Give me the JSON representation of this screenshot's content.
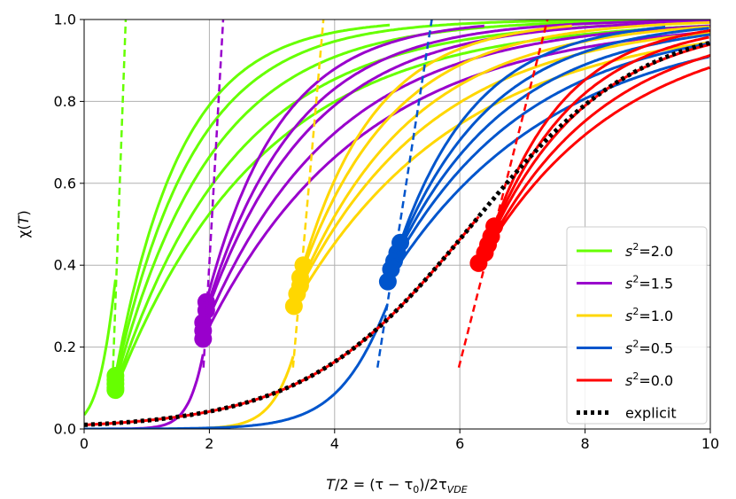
{
  "chart_data": {
    "type": "line",
    "title": "",
    "xlabel": "T/2 = (τ − τ₀)/2τ_VDE",
    "xlabel_parts": {
      "lead": "T",
      "mid": "/2 = (τ − τ",
      "sub0": "0",
      "tail": ")/2τ",
      "subvde": "VDE"
    },
    "ylabel": "χ(T)",
    "ylabel_parts": {
      "chi": "χ(",
      "t": "T",
      "close": ")"
    },
    "xlim": [
      0,
      10
    ],
    "ylim": [
      0,
      1.0
    ],
    "xticks": [
      "0",
      "2",
      "4",
      "6",
      "8",
      "10"
    ],
    "yticks": [
      "0.0",
      "0.2",
      "0.4",
      "0.6",
      "0.8",
      "1.0"
    ],
    "grid": true,
    "legend_position": "lower-right",
    "explicit": {
      "name": "explicit",
      "color": "#000000",
      "style": "dotted",
      "center": 6.2,
      "scale": 1.35,
      "x_end": 10
    },
    "families": [
      {
        "name": "s²=2.0",
        "label_base": "s",
        "label_sup": "2",
        "label_value": "=2.0",
        "color": "#66ff00",
        "base_center": 0.6,
        "base_scale": 0.18,
        "tangent": {
          "x0": 0.45,
          "y0": 0.1,
          "slope": 4.2
        },
        "curves": [
          {
            "x0": 0.5,
            "y0": 0.13,
            "k": 0.95,
            "x_end": 4.9
          },
          {
            "x0": 0.5,
            "y0": 0.12,
            "k": 0.8,
            "x_end": 10
          },
          {
            "x0": 0.5,
            "y0": 0.11,
            "k": 0.65,
            "x_end": 10
          },
          {
            "x0": 0.5,
            "y0": 0.1,
            "k": 0.52,
            "x_end": 10
          },
          {
            "x0": 0.5,
            "y0": 0.095,
            "k": 0.43,
            "x_end": 10
          }
        ]
      },
      {
        "name": "s²=1.5",
        "label_base": "s",
        "label_sup": "2",
        "label_value": "=1.5",
        "color": "#9900cc",
        "base_center": 2.2,
        "base_scale": 0.2,
        "tangent": {
          "x0": 1.95,
          "y0": 0.27,
          "slope": 2.7
        },
        "curves": [
          {
            "x0": 1.95,
            "y0": 0.31,
            "k": 0.85,
            "x_end": 6.4
          },
          {
            "x0": 1.95,
            "y0": 0.29,
            "k": 0.7,
            "x_end": 10
          },
          {
            "x0": 1.9,
            "y0": 0.26,
            "k": 0.6,
            "x_end": 10
          },
          {
            "x0": 1.9,
            "y0": 0.24,
            "k": 0.48,
            "x_end": 10
          },
          {
            "x0": 1.9,
            "y0": 0.22,
            "k": 0.4,
            "x_end": 10
          }
        ]
      },
      {
        "name": "s²=1.0",
        "label_base": "s",
        "label_sup": "2",
        "label_value": "=1.0",
        "color": "#ffd700",
        "base_center": 3.8,
        "base_scale": 0.3,
        "tangent": {
          "x0": 3.45,
          "y0": 0.35,
          "slope": 1.75
        },
        "curves": [
          {
            "x0": 3.5,
            "y0": 0.4,
            "k": 0.85,
            "x_end": 7.8
          },
          {
            "x0": 3.45,
            "y0": 0.37,
            "k": 0.68,
            "x_end": 10
          },
          {
            "x0": 3.45,
            "y0": 0.35,
            "k": 0.55,
            "x_end": 10
          },
          {
            "x0": 3.4,
            "y0": 0.33,
            "k": 0.46,
            "x_end": 10
          },
          {
            "x0": 3.35,
            "y0": 0.3,
            "k": 0.38,
            "x_end": 10
          }
        ]
      },
      {
        "name": "s²=0.5",
        "label_base": "s",
        "label_sup": "2",
        "label_value": "=0.5",
        "color": "#0055cc",
        "base_center": 5.3,
        "base_scale": 0.55,
        "tangent": {
          "x0": 4.95,
          "y0": 0.41,
          "slope": 0.98
        },
        "curves": [
          {
            "x0": 5.05,
            "y0": 0.455,
            "k": 0.8,
            "x_end": 9.3
          },
          {
            "x0": 5.0,
            "y0": 0.43,
            "k": 0.66,
            "x_end": 10
          },
          {
            "x0": 4.95,
            "y0": 0.41,
            "k": 0.55,
            "x_end": 10
          },
          {
            "x0": 4.9,
            "y0": 0.39,
            "k": 0.46,
            "x_end": 10
          },
          {
            "x0": 4.85,
            "y0": 0.36,
            "k": 0.38,
            "x_end": 10
          }
        ]
      },
      {
        "name": "s²=0.0",
        "label_base": "s",
        "label_sup": "2",
        "label_value": "=0.0",
        "color": "#ff0000",
        "base_center": 6.2,
        "base_scale": 1.35,
        "tangent": {
          "x0": 6.5,
          "y0": 0.46,
          "slope": 0.6
        },
        "curves": [
          {
            "x0": 6.55,
            "y0": 0.495,
            "k": 0.85,
            "x_end": 10
          },
          {
            "x0": 6.5,
            "y0": 0.47,
            "k": 0.72,
            "x_end": 10
          },
          {
            "x0": 6.45,
            "y0": 0.45,
            "k": 0.62,
            "x_end": 10
          },
          {
            "x0": 6.4,
            "y0": 0.43,
            "k": 0.52,
            "x_end": 10
          },
          {
            "x0": 6.3,
            "y0": 0.405,
            "k": 0.44,
            "x_end": 10
          }
        ]
      }
    ],
    "legend": [
      {
        "series": 0,
        "base": "s",
        "sup": "2",
        "value": "=2.0"
      },
      {
        "series": 1,
        "base": "s",
        "sup": "2",
        "value": "=1.5"
      },
      {
        "series": 2,
        "base": "s",
        "sup": "2",
        "value": "=1.0"
      },
      {
        "series": 3,
        "base": "s",
        "sup": "2",
        "value": "=0.5"
      },
      {
        "series": 4,
        "base": "s",
        "sup": "2",
        "value": "=0.0"
      },
      {
        "series": "explicit",
        "label": "explicit"
      }
    ]
  }
}
